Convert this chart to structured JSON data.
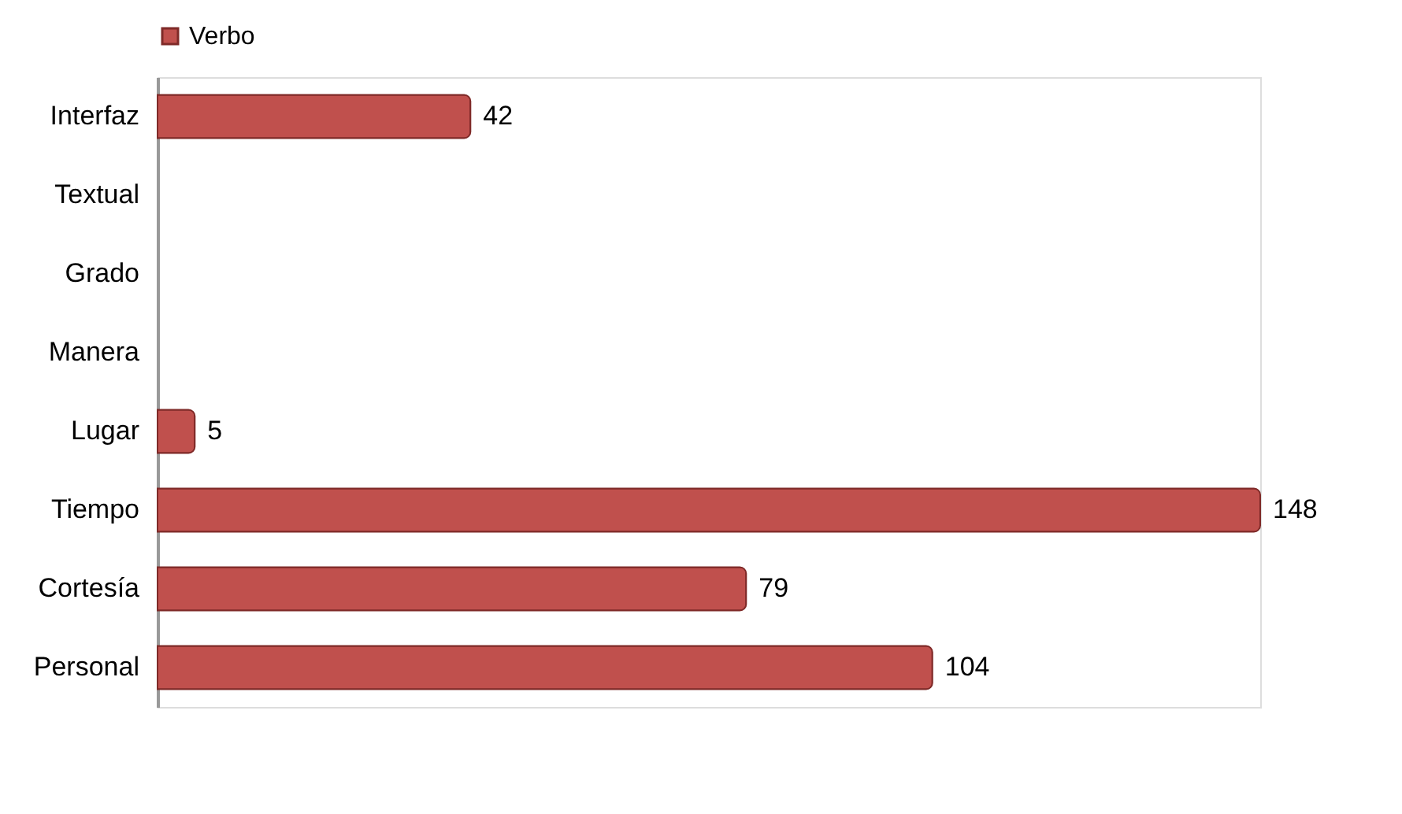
{
  "chart_data": {
    "type": "bar",
    "orientation": "horizontal",
    "data_labels": true,
    "legend": "top",
    "categories": [
      "Interfaz",
      "Textual",
      "Grado",
      "Manera",
      "Lugar",
      "Tiempo",
      "Cortesía",
      "Personal"
    ],
    "series": [
      {
        "name": "Verbo",
        "color": "#c0504d",
        "values": [
          42,
          null,
          null,
          null,
          5,
          148,
          79,
          104
        ]
      }
    ]
  }
}
